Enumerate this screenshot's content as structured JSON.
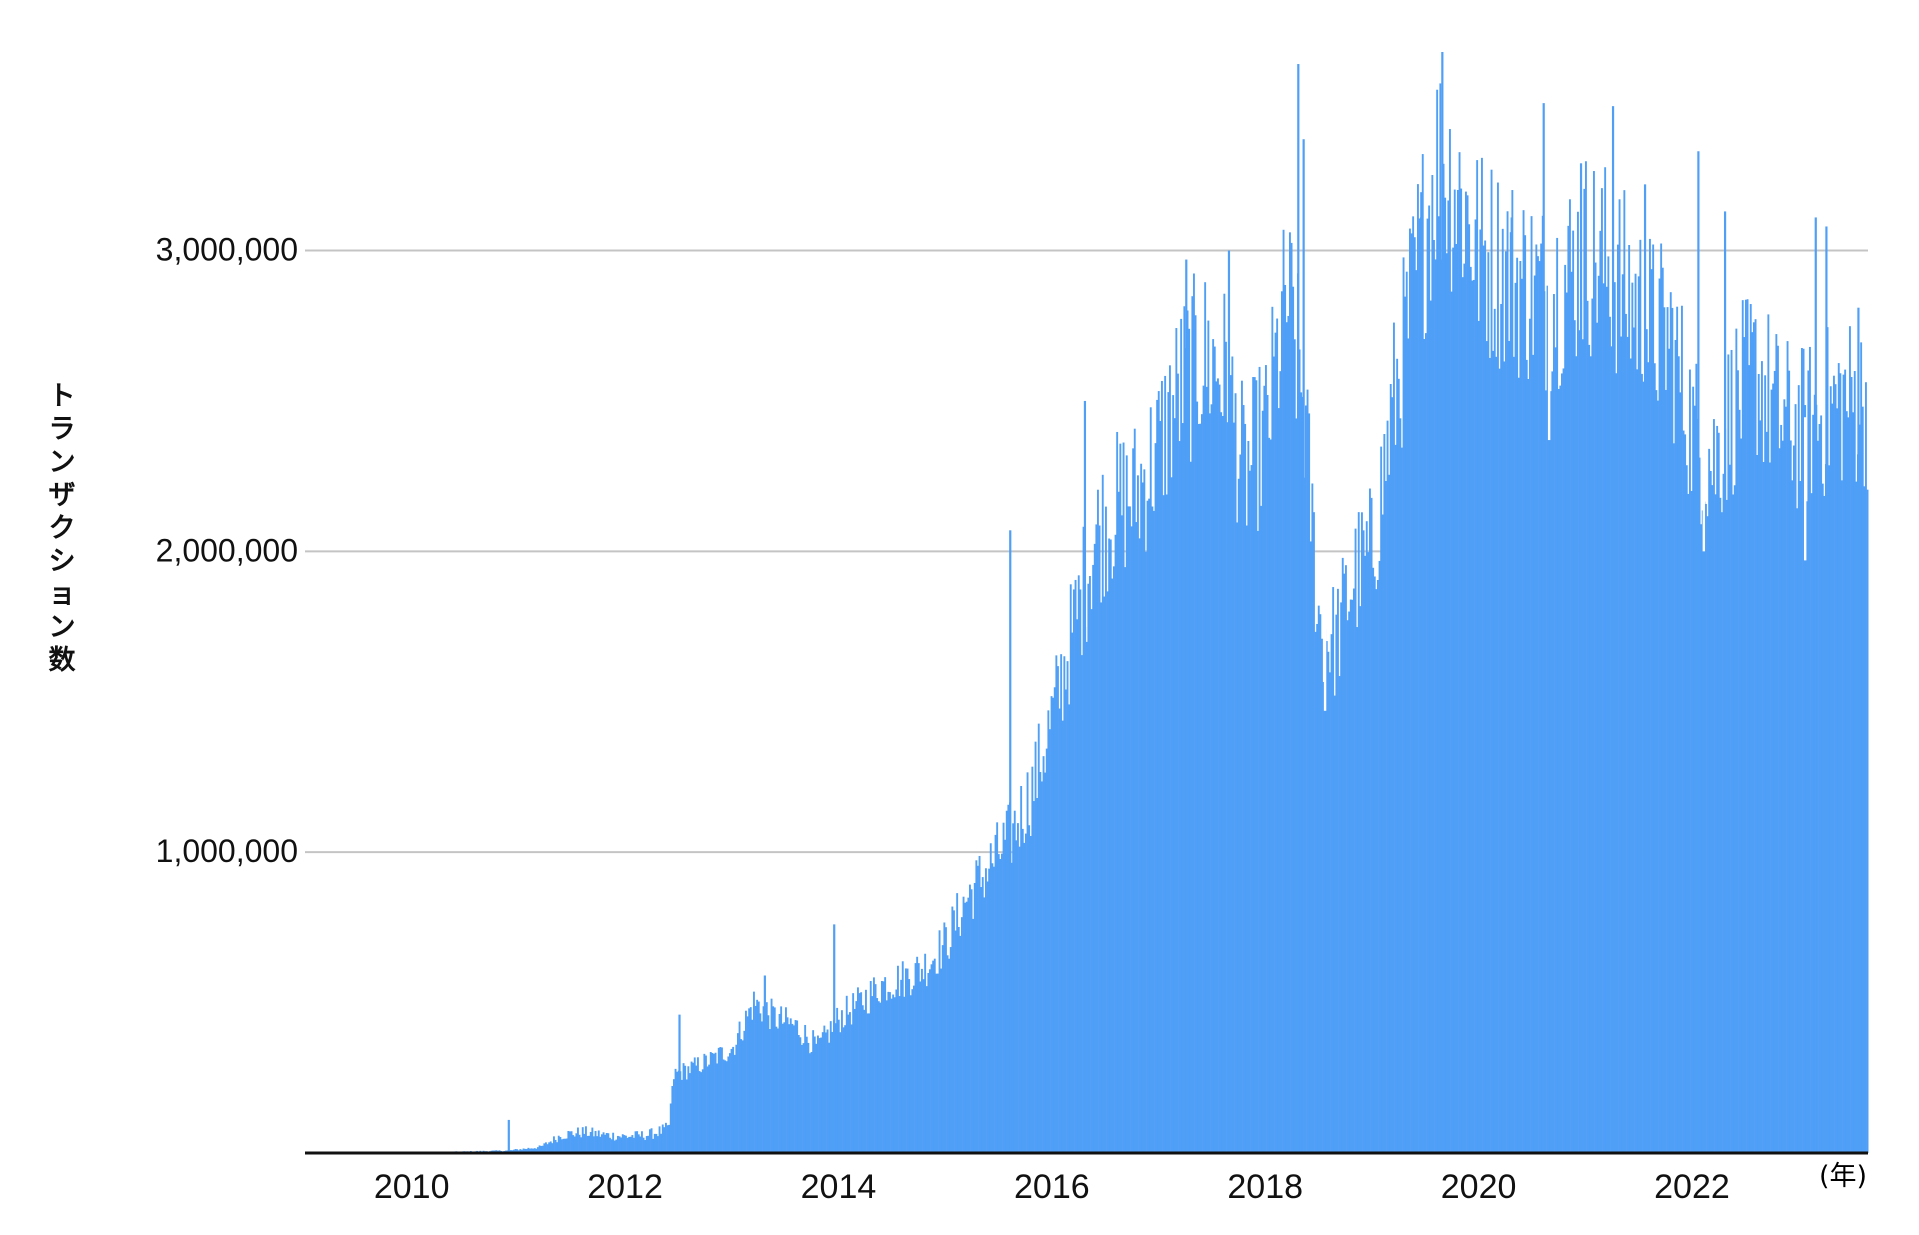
{
  "chart_data": {
    "type": "bar",
    "title": "",
    "ylabel": "トランザクション数",
    "xlabel": "",
    "x_unit_label": "(年)",
    "xlim": [
      2009.0,
      2023.65
    ],
    "ylim": [
      0,
      3650000
    ],
    "y_ticks": [
      1000000,
      2000000,
      3000000
    ],
    "y_tick_labels": [
      "1,000,000",
      "2,000,000",
      "3,000,000"
    ],
    "x_ticks": [
      2010,
      2012,
      2014,
      2016,
      2018,
      2020,
      2022
    ],
    "x_tick_labels": [
      "2010",
      "2012",
      "2014",
      "2016",
      "2018",
      "2020",
      "2022"
    ],
    "grid": "horizontal",
    "legend": "none",
    "series": [
      {
        "color": "#4f9ff7",
        "x": [
          2009.0,
          2010.0,
          2010.5,
          2010.9,
          2011.2,
          2011.4,
          2011.6,
          2011.8,
          2012.0,
          2012.2,
          2012.4,
          2012.45,
          2012.6,
          2012.8,
          2013.0,
          2013.2,
          2013.4,
          2013.6,
          2013.8,
          2014.0,
          2014.2,
          2014.4,
          2014.6,
          2014.8,
          2015.0,
          2015.2,
          2015.4,
          2015.6,
          2015.8,
          2016.0,
          2016.2,
          2016.4,
          2016.6,
          2016.8,
          2017.0,
          2017.2,
          2017.4,
          2017.6,
          2017.8,
          2018.0,
          2018.2,
          2018.35,
          2018.5,
          2018.65,
          2018.8,
          2019.0,
          2019.2,
          2019.4,
          2019.6,
          2019.8,
          2020.0,
          2020.2,
          2020.4,
          2020.6,
          2020.8,
          2021.0,
          2021.2,
          2021.4,
          2021.6,
          2021.8,
          2022.0,
          2022.2,
          2022.4,
          2022.6,
          2022.8,
          2023.0,
          2023.2,
          2023.4,
          2023.6
        ],
        "values": [
          1000,
          2000,
          5000,
          8000,
          20000,
          60000,
          70000,
          60000,
          55000,
          60000,
          80000,
          260000,
          280000,
          310000,
          350000,
          500000,
          450000,
          420000,
          350000,
          450000,
          500000,
          560000,
          580000,
          620000,
          700000,
          850000,
          950000,
          1050000,
          1200000,
          1450000,
          1750000,
          2050000,
          2150000,
          2200000,
          2350000,
          2550000,
          2650000,
          2600000,
          2250000,
          2400000,
          2850000,
          2500000,
          1750000,
          1700000,
          1900000,
          2000000,
          2500000,
          2900000,
          3300000,
          3200000,
          3000000,
          2950000,
          2900000,
          2850000,
          2900000,
          3000000,
          2950000,
          2850000,
          2750000,
          2700000,
          2400000,
          2300000,
          2500000,
          2600000,
          2450000,
          2400000,
          2450000,
          2500000,
          2500000
        ]
      }
    ],
    "spikes": [
      {
        "x": 2010.9,
        "y": 110000
      },
      {
        "x": 2012.5,
        "y": 460000
      },
      {
        "x": 2013.3,
        "y": 590000
      },
      {
        "x": 2013.95,
        "y": 760000
      },
      {
        "x": 2015.6,
        "y": 2070000
      },
      {
        "x": 2016.3,
        "y": 2500000
      },
      {
        "x": 2017.25,
        "y": 2970000
      },
      {
        "x": 2017.65,
        "y": 3000000
      },
      {
        "x": 2018.3,
        "y": 3620000
      },
      {
        "x": 2018.35,
        "y": 3370000
      },
      {
        "x": 2019.45,
        "y": 3110000
      },
      {
        "x": 2019.65,
        "y": 3660000
      },
      {
        "x": 2020.3,
        "y": 3110000
      },
      {
        "x": 2020.6,
        "y": 3490000
      },
      {
        "x": 2020.95,
        "y": 3290000
      },
      {
        "x": 2021.25,
        "y": 3480000
      },
      {
        "x": 2021.55,
        "y": 3220000
      },
      {
        "x": 2022.05,
        "y": 3330000
      },
      {
        "x": 2022.3,
        "y": 3130000
      },
      {
        "x": 2023.15,
        "y": 3110000
      },
      {
        "x": 2023.25,
        "y": 3080000
      },
      {
        "x": 2023.55,
        "y": 2810000
      }
    ],
    "dips": [
      {
        "x": 2015.65,
        "y": 1300000
      },
      {
        "x": 2018.55,
        "y": 1470000
      },
      {
        "x": 2020.65,
        "y": 2370000
      },
      {
        "x": 2022.1,
        "y": 2000000
      },
      {
        "x": 2023.05,
        "y": 1970000
      }
    ]
  }
}
